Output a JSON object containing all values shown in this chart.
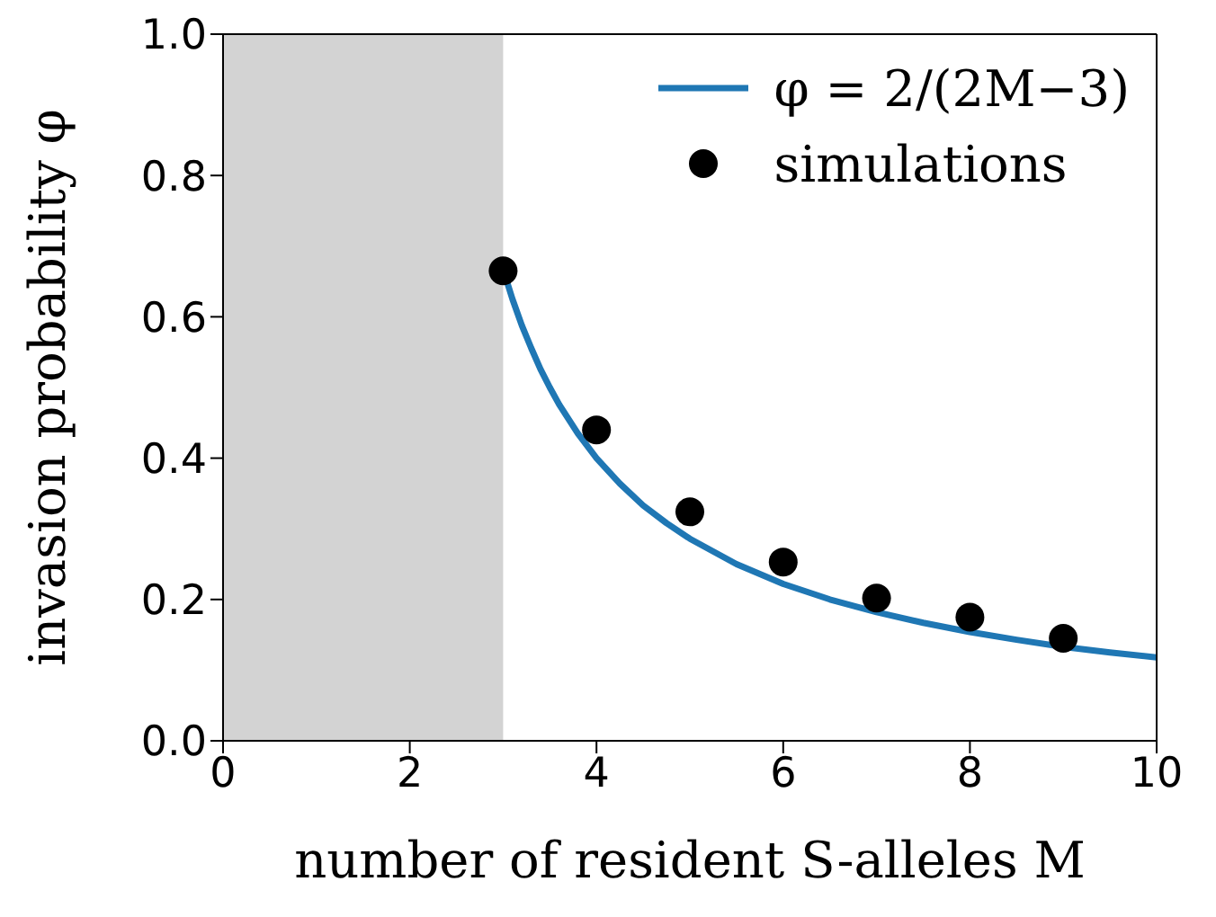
{
  "chart_data": {
    "type": "scatter",
    "xlabel": "number of resident S-alleles M",
    "ylabel": "invasion probability φ",
    "xlim": [
      0,
      10
    ],
    "ylim": [
      0,
      1
    ],
    "xticks": [
      0,
      2,
      4,
      6,
      8,
      10
    ],
    "yticks": [
      {
        "value": 0,
        "label": "0.0"
      },
      {
        "value": 0.2,
        "label": "0.2"
      },
      {
        "value": 0.4,
        "label": "0.4"
      },
      {
        "value": 0.6,
        "label": "0.6"
      },
      {
        "value": 0.8,
        "label": "0.8"
      },
      {
        "value": 1,
        "label": "1.0"
      }
    ],
    "bands": [
      {
        "axis": "x",
        "from": 0,
        "to": 3,
        "color": "#d3d3d3"
      }
    ],
    "legend": "top right",
    "series": [
      {
        "name": "φ = 2/(2M−3)",
        "type": "line",
        "color": "#1f77b4",
        "marker": "none",
        "line_style": "solid",
        "x": [
          3,
          3.1,
          3.2,
          3.3,
          3.4,
          3.5,
          3.6,
          3.8,
          4,
          4.25,
          4.5,
          4.75,
          5,
          5.5,
          6,
          6.5,
          7,
          7.5,
          8,
          8.5,
          9,
          9.5,
          10
        ],
        "values": [
          0.667,
          0.625,
          0.588,
          0.556,
          0.526,
          0.5,
          0.476,
          0.435,
          0.4,
          0.364,
          0.333,
          0.308,
          0.286,
          0.25,
          0.222,
          0.2,
          0.182,
          0.167,
          0.154,
          0.143,
          0.133,
          0.125,
          0.118
        ]
      },
      {
        "name": "simulations",
        "color": "#000000",
        "marker": "circle",
        "x": [
          3,
          4,
          5,
          6,
          7,
          8,
          9
        ],
        "values": [
          0.665,
          0.44,
          0.324,
          0.253,
          0.202,
          0.175,
          0.145
        ]
      }
    ]
  }
}
